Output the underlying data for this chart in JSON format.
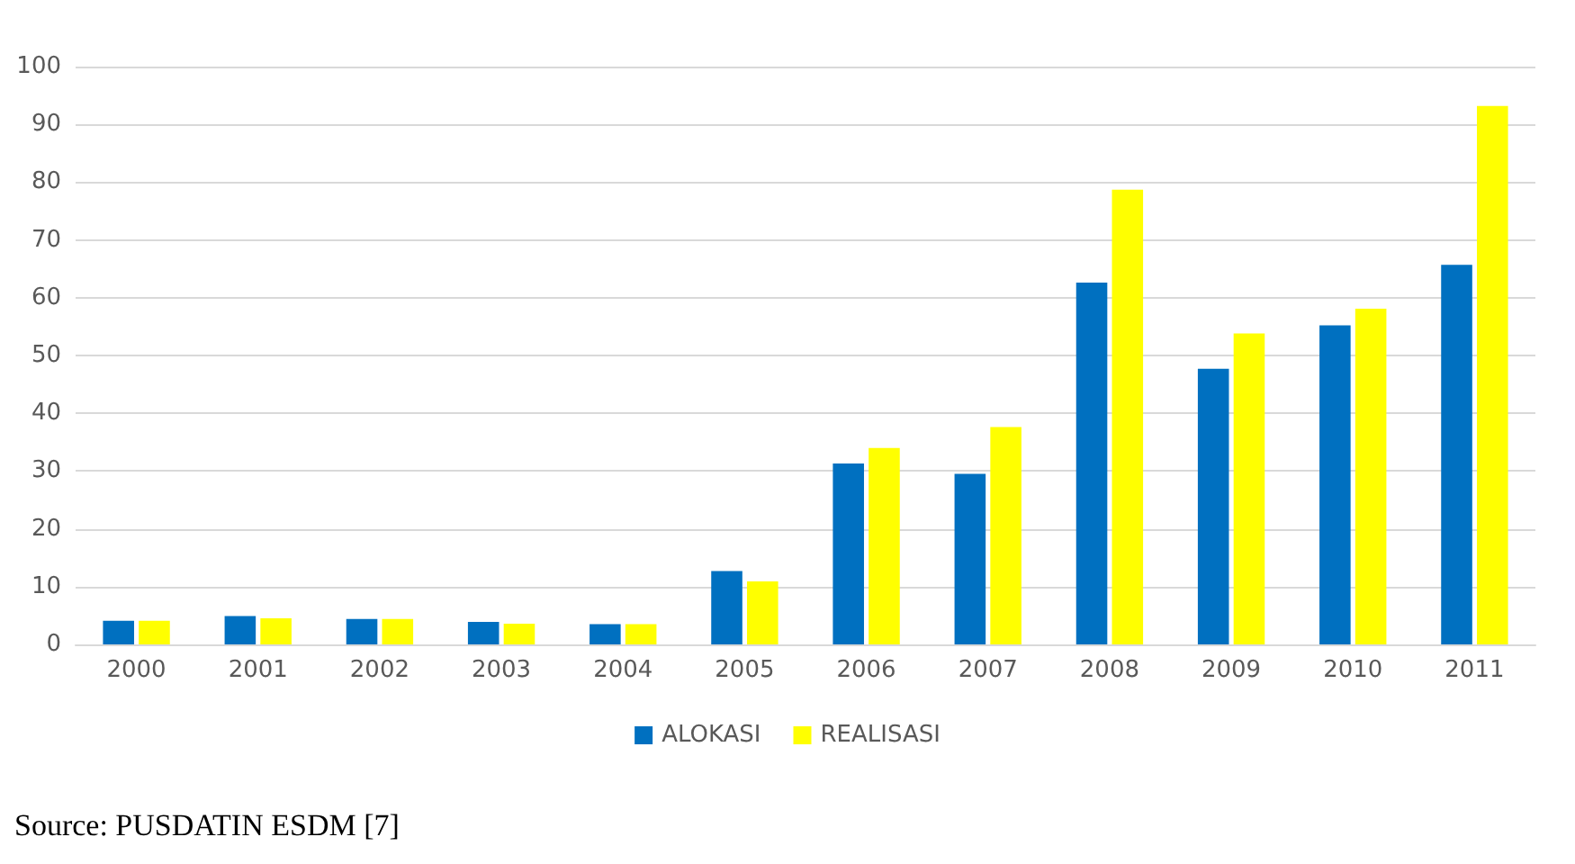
{
  "chart_data": {
    "type": "bar",
    "categories": [
      "2000",
      "2001",
      "2002",
      "2003",
      "2004",
      "2005",
      "2006",
      "2007",
      "2008",
      "2009",
      "2010",
      "2011"
    ],
    "series": [
      {
        "name": "ALOKASI",
        "color": "#0070c0",
        "values": [
          4.1,
          4.9,
          4.4,
          3.9,
          3.5,
          12.7,
          31.3,
          29.5,
          62.6,
          47.7,
          55.2,
          65.7
        ]
      },
      {
        "name": "REALISASI",
        "color": "#ffff00",
        "values": [
          4.1,
          4.5,
          4.4,
          3.6,
          3.5,
          10.9,
          34.0,
          37.6,
          78.7,
          53.8,
          58.1,
          93.2
        ]
      }
    ],
    "ylim": [
      0,
      100
    ],
    "yticks": [
      0,
      10,
      20,
      30,
      40,
      50,
      60,
      70,
      80,
      90,
      100
    ],
    "grid": "y",
    "legend": "bottom",
    "annotations": [
      "Source: PUSDATIN ESDM [7]"
    ]
  }
}
